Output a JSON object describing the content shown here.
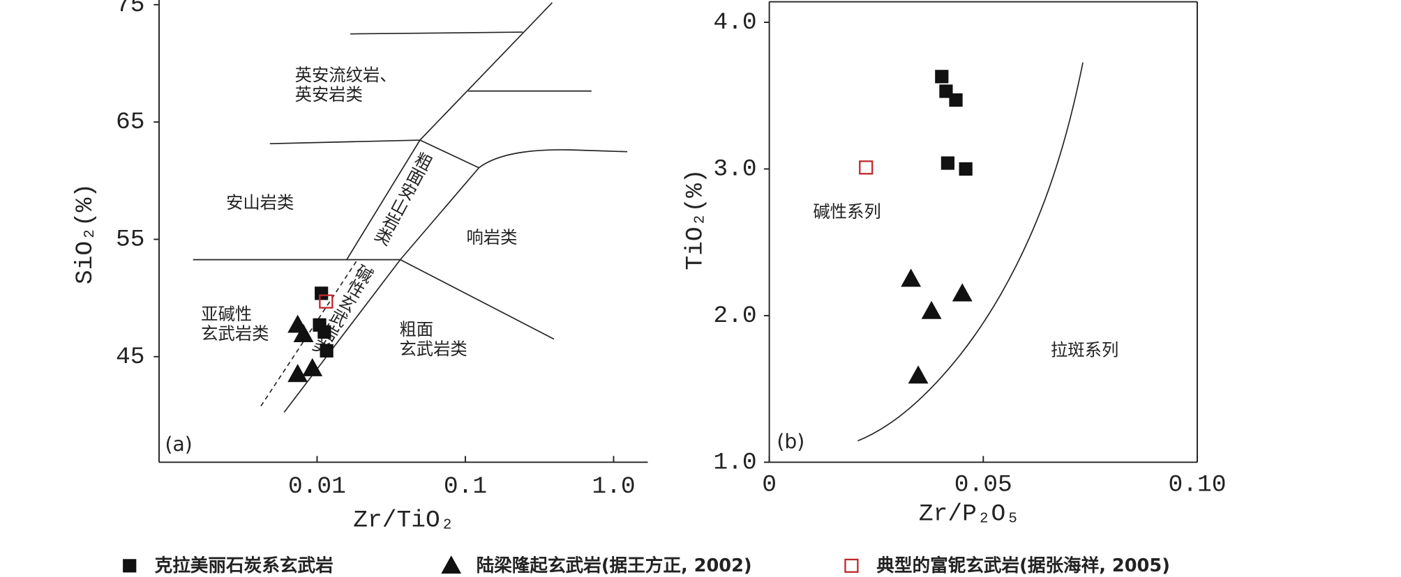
{
  "chart_data": [
    {
      "type": "scatter",
      "panel_label": "(a)",
      "x_label": "Zr/TiO₂",
      "y_label": "SiO₂(%)",
      "xscale": "log",
      "xlim": [
        0.00086,
        1.7
      ],
      "ylim": [
        36,
        75.4
      ],
      "xticks": [
        0.01,
        0.1,
        {
          "value": 1,
          "label": "1.0"
        }
      ],
      "yticks": [
        45,
        55,
        65,
        75
      ],
      "field_labels": [
        [
          "英安流纹岩、",
          "英安岩类"
        ],
        [
          "安山岩类"
        ],
        [
          "粗面安山岩类"
        ],
        [
          "响岩类"
        ],
        [
          "碱性玄武岩类"
        ],
        [
          "亚碱性",
          "玄武岩类"
        ],
        [
          "粗面",
          "玄武岩类"
        ]
      ],
      "series": [
        {
          "name": "克拉美丽石炭系玄武岩",
          "marker": "square",
          "filled": true,
          "color": "#111111",
          "x": [
            0.0107,
            0.0104,
            0.0112,
            0.0116
          ],
          "values": [
            50.4,
            47.7,
            47.1,
            45.5
          ]
        },
        {
          "name": "陆梁隆起玄武岩(据王方正, 2002)",
          "marker": "triangle",
          "filled": true,
          "color": "#111111",
          "x": [
            0.0074,
            0.0081,
            0.0074,
            0.0093
          ],
          "values": [
            47.7,
            46.9,
            43.5,
            44.0
          ]
        },
        {
          "name": "典型的富铌玄武岩(据张海祥, 2005)",
          "marker": "square",
          "filled": false,
          "color": "#c0282d",
          "x": [
            0.0115
          ],
          "values": [
            49.7
          ]
        }
      ]
    },
    {
      "type": "scatter",
      "panel_label": "(b)",
      "x_label": "Zr/P₂O₅",
      "y_label": "TiO₂(%)",
      "xscale": "linear",
      "xlim": [
        0,
        0.1
      ],
      "ylim": [
        1.0,
        4.14
      ],
      "xticks": [
        0,
        0.05,
        {
          "value": 0.1,
          "label": "0.10"
        }
      ],
      "yticks": [
        {
          "value": 1,
          "label": "1.0"
        },
        {
          "value": 2,
          "label": "2.0"
        },
        {
          "value": 3,
          "label": "3.0"
        },
        {
          "value": 4,
          "label": "4.0"
        }
      ],
      "field_labels": [
        [
          "碱性系列"
        ],
        [
          "拉斑系列"
        ]
      ],
      "series": [
        {
          "marker": "square",
          "filled": true,
          "color": "#111111",
          "x": [
            0.0403,
            0.0413,
            0.0436,
            0.0417,
            0.0459
          ],
          "values": [
            3.63,
            3.53,
            3.47,
            3.04,
            3.0
          ]
        },
        {
          "marker": "triangle",
          "filled": true,
          "color": "#111111",
          "x": [
            0.0331,
            0.0379,
            0.0451,
            0.0348
          ],
          "values": [
            2.25,
            2.03,
            2.15,
            1.59
          ]
        },
        {
          "marker": "square",
          "filled": false,
          "color": "#c0282d",
          "x": [
            0.0226
          ],
          "values": [
            3.01
          ]
        }
      ]
    }
  ]
}
